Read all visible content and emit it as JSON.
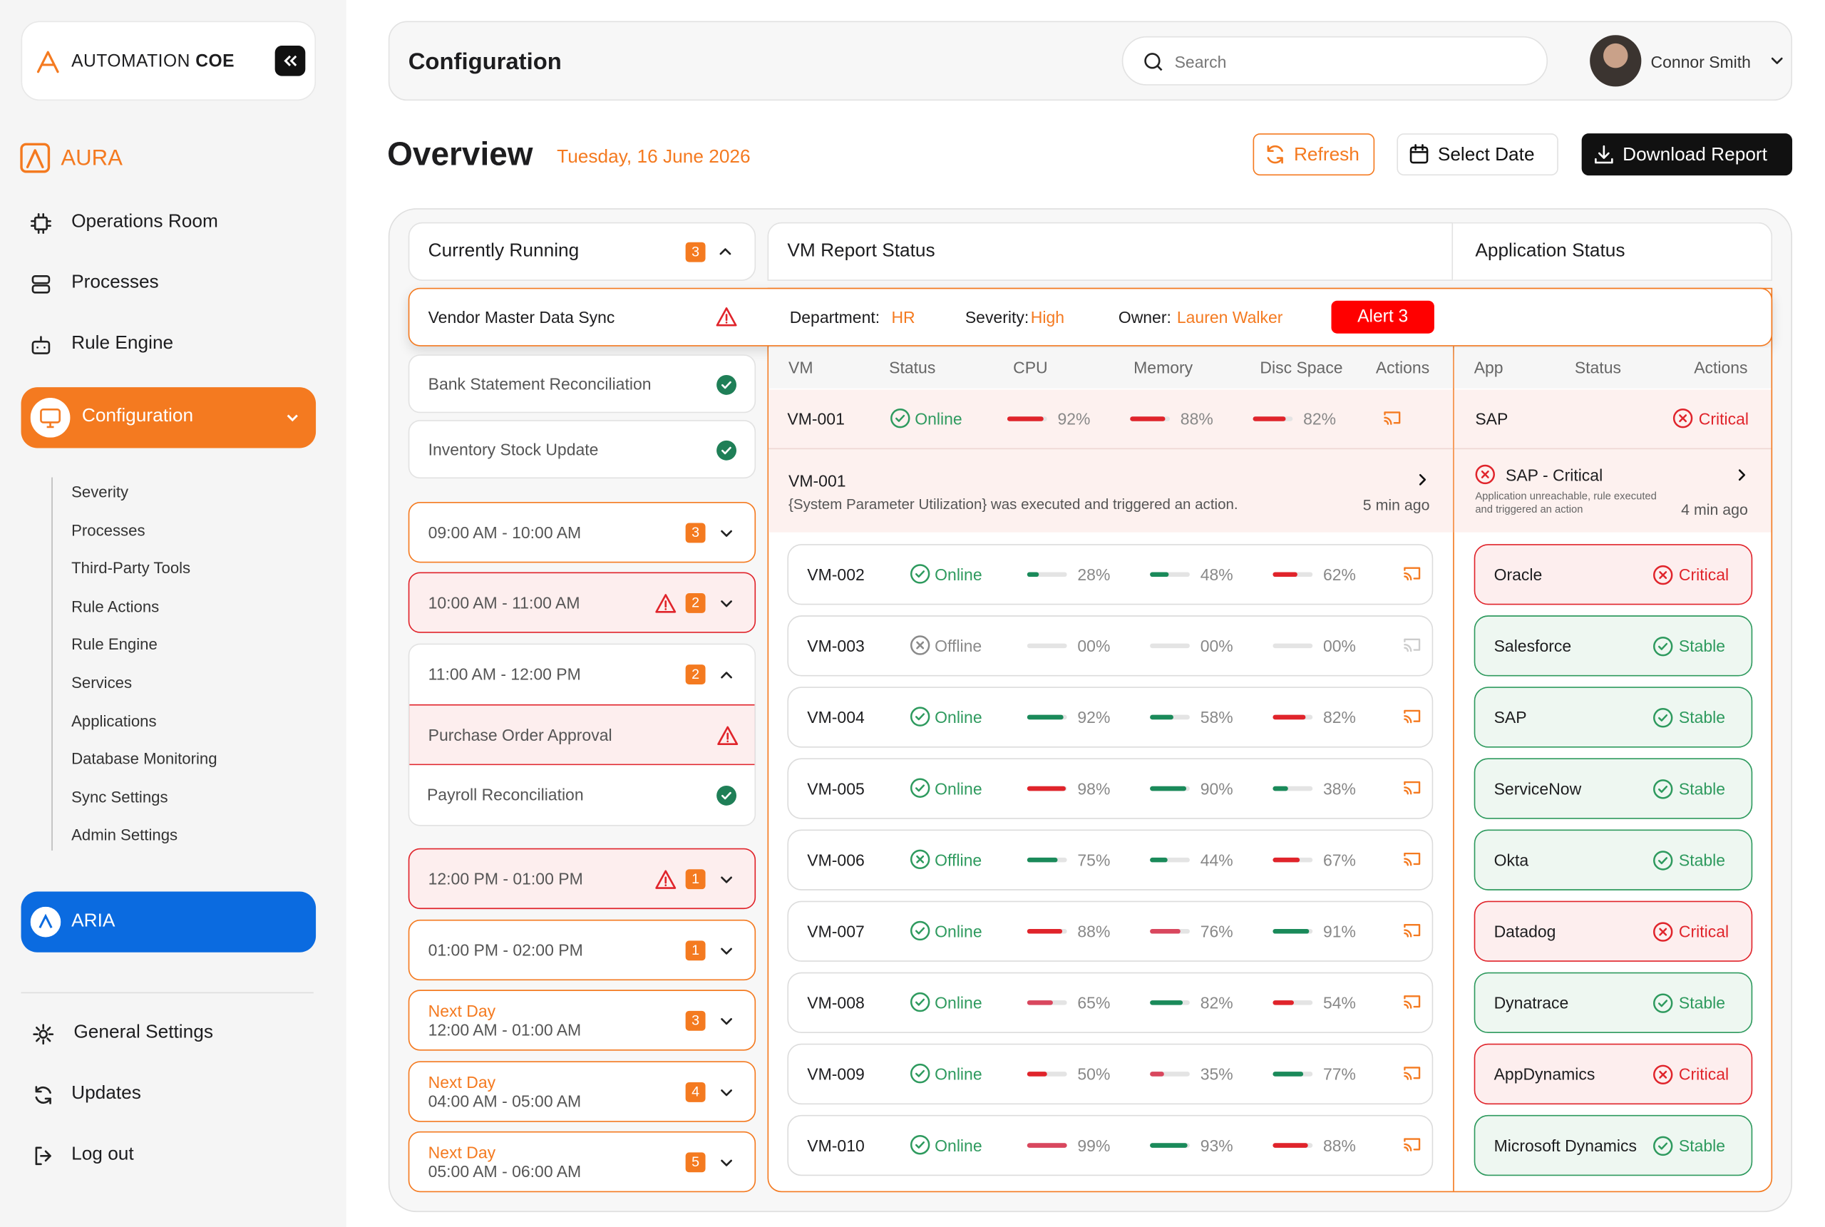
{
  "brand": {
    "name": "AUTOMATION",
    "name_bold": "COE"
  },
  "sidebar": {
    "section": "AURA",
    "nav": [
      "Operations Room",
      "Processes",
      "Rule Engine"
    ],
    "active": "Configuration",
    "subnav": [
      "Severity",
      "Processes",
      "Third-Party Tools",
      "Rule Actions",
      "Rule Engine",
      "Services",
      "Applications",
      "Database Monitoring",
      "Sync Settings",
      "Admin Settings"
    ],
    "aria": "ARIA",
    "bottom": [
      "General Settings",
      "Updates",
      "Log out"
    ]
  },
  "header": {
    "title": "Configuration",
    "search_placeholder": "Search",
    "user": "Connor Smith"
  },
  "overview": {
    "title": "Overview",
    "date": "Tuesday, 16 June 2026",
    "buttons": [
      "Refresh",
      "Select Date",
      "Download Report"
    ]
  },
  "running": {
    "title": "Currently Running",
    "count": 3
  },
  "alert_row": {
    "process": "Vendor Master Data Sync",
    "department_label": "Department:",
    "department": "HR",
    "severity_label": "Severity:",
    "severity": "High",
    "owner_label": "Owner:",
    "owner": "Lauren Walker",
    "alert": "Alert 3"
  },
  "running_items": [
    {
      "name": "Bank Statement Reconciliation"
    },
    {
      "name": "Inventory Stock Update"
    }
  ],
  "slots": [
    {
      "label": "09:00 AM - 10:00 AM",
      "count": 3,
      "alert": false
    },
    {
      "label": "10:00 AM - 11:00 AM",
      "count": 2,
      "alert": true
    },
    {
      "label": "11:00 AM - 12:00 PM",
      "count": 2,
      "alert": false,
      "items": [
        {
          "name": "Purchase Order Approval",
          "alert": true
        },
        {
          "name": "Payroll Reconciliation",
          "alert": false
        }
      ]
    },
    {
      "label": "12:00 PM - 01:00 PM",
      "count": 1,
      "alert": true
    },
    {
      "label": "01:00 PM - 02:00 PM",
      "count": 1,
      "alert": false
    },
    {
      "prefix": "Next Day",
      "label": "12:00 AM - 01:00 AM",
      "count": 3,
      "alert": false
    },
    {
      "prefix": "Next Day",
      "label": "04:00 AM - 05:00 AM",
      "count": 4,
      "alert": false
    },
    {
      "prefix": "Next Day",
      "label": "05:00 AM - 06:00 AM",
      "count": 5,
      "alert": false
    }
  ],
  "vm_panel": {
    "title": "VM Report Status",
    "columns": [
      "VM",
      "Status",
      "CPU",
      "Memory",
      "Disc Space",
      "Actions"
    ],
    "detail": {
      "vm": "VM-001",
      "message": "{System Parameter Utilization} was executed and triggered an action.",
      "time": "5 min ago"
    },
    "rows": [
      {
        "vm": "VM-001",
        "status": "Online",
        "status_color": "#2e9a5e",
        "cpu": "92%",
        "cpu_color": "#e0242b",
        "mem": "88%",
        "mem_color": "#e0242b",
        "disk": "82%",
        "disk_color": "#e0242b"
      },
      {
        "vm": "VM-002",
        "status": "Online",
        "status_color": "#2e9a5e",
        "cpu": "28%",
        "cpu_color": "#1a8a5a",
        "mem": "48%",
        "mem_color": "#1a8a5a",
        "disk": "62%",
        "disk_color": "#e0242b"
      },
      {
        "vm": "VM-003",
        "status": "Offline",
        "status_color": "#8a8a8a",
        "cpu": "00%",
        "cpu_color": "#e2e2e2",
        "mem": "00%",
        "mem_color": "#e2e2e2",
        "disk": "00%",
        "disk_color": "#e2e2e2"
      },
      {
        "vm": "VM-004",
        "status": "Online",
        "status_color": "#2e9a5e",
        "cpu": "92%",
        "cpu_color": "#1a8a5a",
        "mem": "58%",
        "mem_color": "#1a8a5a",
        "disk": "82%",
        "disk_color": "#e0242b"
      },
      {
        "vm": "VM-005",
        "status": "Online",
        "status_color": "#2e9a5e",
        "cpu": "98%",
        "cpu_color": "#e0242b",
        "mem": "90%",
        "mem_color": "#1a8a5a",
        "disk": "38%",
        "disk_color": "#1a8a5a"
      },
      {
        "vm": "VM-006",
        "status": "Offline",
        "status_color": "#2e9a5e",
        "cpu": "75%",
        "cpu_color": "#1a8a5a",
        "mem": "44%",
        "mem_color": "#1a8a5a",
        "disk": "67%",
        "disk_color": "#e0242b"
      },
      {
        "vm": "VM-007",
        "status": "Online",
        "status_color": "#2e9a5e",
        "cpu": "88%",
        "cpu_color": "#e0242b",
        "mem": "76%",
        "mem_color": "#d9475e",
        "disk": "91%",
        "disk_color": "#1a8a5a"
      },
      {
        "vm": "VM-008",
        "status": "Online",
        "status_color": "#2e9a5e",
        "cpu": "65%",
        "cpu_color": "#d9475e",
        "mem": "82%",
        "mem_color": "#1a8a5a",
        "disk": "54%",
        "disk_color": "#e0242b"
      },
      {
        "vm": "VM-009",
        "status": "Online",
        "status_color": "#2e9a5e",
        "cpu": "50%",
        "cpu_color": "#e0242b",
        "mem": "35%",
        "mem_color": "#d9475e",
        "disk": "77%",
        "disk_color": "#1a8a5a"
      },
      {
        "vm": "VM-010",
        "status": "Online",
        "status_color": "#2e9a5e",
        "cpu": "99%",
        "cpu_color": "#d9475e",
        "mem": "93%",
        "mem_color": "#1a8a5a",
        "disk": "88%",
        "disk_color": "#e0242b"
      }
    ]
  },
  "app_panel": {
    "title": "Application Status",
    "columns": [
      "App",
      "Status",
      "Actions"
    ],
    "detail": {
      "title": "SAP - Critical",
      "message": "Application unreachable, rule executed and triggered an action",
      "time": "4 min ago"
    },
    "rows": [
      {
        "app": "SAP",
        "status": "Critical",
        "color": "#e0242b"
      },
      {
        "app": "Oracle",
        "status": "Critical",
        "color": "#e0242b"
      },
      {
        "app": "Salesforce",
        "status": "Stable",
        "color": "#2e9a5e"
      },
      {
        "app": "SAP",
        "status": "Stable",
        "color": "#2e9a5e"
      },
      {
        "app": "ServiceNow",
        "status": "Stable",
        "color": "#2e9a5e"
      },
      {
        "app": "Okta",
        "status": "Stable",
        "color": "#2e9a5e"
      },
      {
        "app": "Datadog",
        "status": "Critical",
        "color": "#e0242b"
      },
      {
        "app": "Dynatrace",
        "status": "Stable",
        "color": "#2e9a5e"
      },
      {
        "app": "AppDynamics",
        "status": "Critical",
        "color": "#e0242b"
      },
      {
        "app": "Microsoft Dynamics",
        "status": "Stable",
        "color": "#2e9a5e"
      }
    ]
  }
}
